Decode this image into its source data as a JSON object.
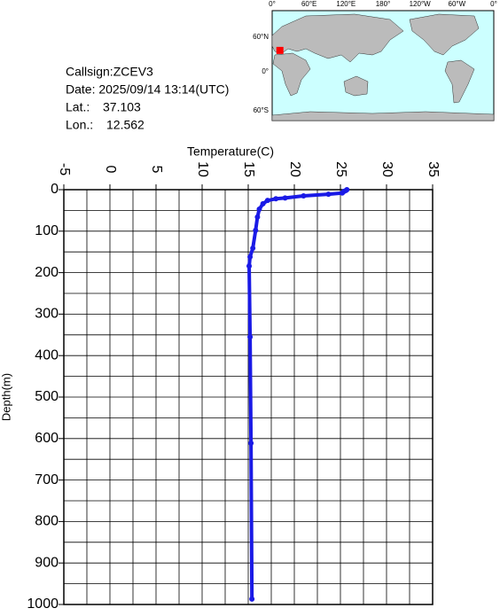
{
  "header": {
    "callsign": "Callsign:ZCEV3",
    "date": "Date:  2025/09/14 13:14(UTC)",
    "lat_label": "Lat.:",
    "lat": 37.103,
    "lon_label": "Lon.:",
    "lon": 12.562
  },
  "map": {
    "xticks": [
      "0°",
      "60°E",
      "120°E",
      "180°",
      "120°W",
      "60°W",
      "0°"
    ],
    "yticks": [
      "60°N",
      "0°",
      "60°S"
    ]
  },
  "chart_data": {
    "type": "line",
    "xlabel": "Temperature(C)",
    "ylabel": "Depth(m)",
    "xlim": [
      -5,
      35
    ],
    "xticks": [
      -5,
      0,
      5,
      10,
      15,
      20,
      25,
      30,
      35
    ],
    "xminor": [
      -2.5,
      2.5,
      7.5,
      12.5,
      17.5,
      22.5,
      27.5,
      32.5
    ],
    "ylim": [
      0,
      1000
    ],
    "yticks": [
      0,
      100,
      200,
      300,
      400,
      500,
      600,
      700,
      800,
      900,
      1000
    ],
    "yminor": [
      50,
      150,
      250,
      350,
      450,
      550,
      650,
      750,
      850,
      950
    ],
    "y_inverted": true,
    "grid": true,
    "color": "#1a1ae6",
    "x": [
      25.7,
      25.6,
      25.4,
      25.2,
      23.7,
      21.0,
      19.0,
      18.0,
      17.1,
      16.6,
      16.2,
      16.0,
      15.8,
      15.5,
      15.2,
      15.1,
      15.2,
      15.3,
      15.4
    ],
    "y": [
      0,
      2,
      4,
      8,
      11,
      15,
      20,
      22,
      26,
      34,
      47,
      66,
      98,
      141,
      162,
      184,
      355,
      611,
      987
    ]
  }
}
